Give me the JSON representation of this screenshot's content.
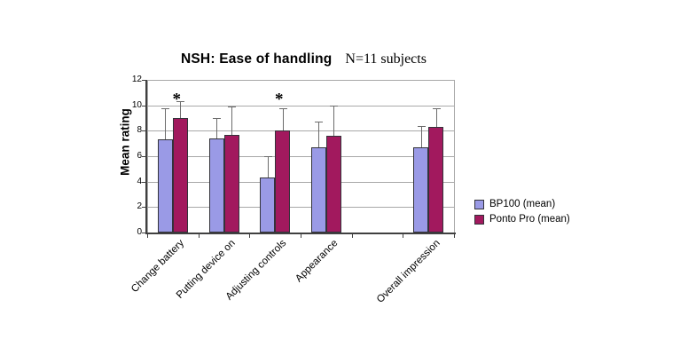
{
  "chart_data": {
    "type": "bar",
    "title": "NSH: Ease of handling",
    "subtitle": "N=11 subjects",
    "ylabel": "Mean rating",
    "xlabel": "",
    "ylim": [
      0,
      12
    ],
    "yticks": [
      "0",
      "2",
      "4",
      "6",
      "8",
      "10",
      "12"
    ],
    "grid": true,
    "legend_position": "right",
    "categories": [
      "Change battery",
      "Putting device on",
      "Adjusting controls",
      "Appearance",
      "Overall impression"
    ],
    "blank_slot_after_index": 3,
    "series": [
      {
        "name": "BP100 (mean)",
        "color": "#9a9ae6",
        "values": [
          7.3,
          7.4,
          4.3,
          6.7,
          6.7
        ],
        "error_upper": [
          9.8,
          9.0,
          6.0,
          8.7,
          8.4
        ]
      },
      {
        "name": "Ponto Pro (mean)",
        "color": "#a2195e",
        "values": [
          9.0,
          7.7,
          8.0,
          7.6,
          8.3
        ],
        "error_upper": [
          10.3,
          9.9,
          9.8,
          10.0,
          9.8
        ]
      }
    ],
    "annotations": [
      {
        "symbol": "*",
        "category": "Change battery",
        "category_index": 0,
        "value": 10.45
      },
      {
        "symbol": "*",
        "category": "Adjusting controls",
        "category_index": 2,
        "value": 10.45
      }
    ]
  }
}
